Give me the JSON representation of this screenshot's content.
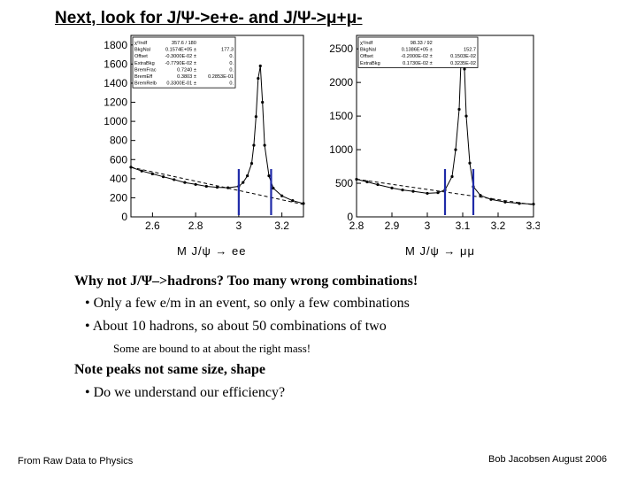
{
  "title": "Next, look for J/Ψ->e+e- and J/Ψ->μ+μ-",
  "plot_left": {
    "ytick_labels": [
      "1800",
      "1600",
      "1400",
      "1200",
      "1000",
      "800",
      "600",
      "400",
      "200",
      "0"
    ],
    "xtick_labels": [
      "2.6",
      "2.8",
      "3",
      "3.2"
    ],
    "stats": [
      [
        "χ²/ndf",
        "357.6  /  180",
        ""
      ],
      [
        "BkgNal",
        "0.1574E+05 ±",
        "177.3"
      ],
      [
        "Offset",
        "-0.3000E-02 ±",
        "0."
      ],
      [
        "ExtraBkg",
        "-0.7790E-02 ±",
        "0."
      ],
      [
        "BremFrac",
        "0.7240 ±",
        "0."
      ],
      [
        "BremEff",
        "0.3803 ±",
        "0.2853E-01"
      ],
      [
        "BremRelb",
        "0.3300E-01 ±",
        "0."
      ]
    ],
    "axis_label": "M J/ψ  →  ee"
  },
  "plot_right": {
    "ytick_labels": [
      "2500",
      "2000",
      "1500",
      "1000",
      "500",
      "0"
    ],
    "xtick_labels": [
      "2.8",
      "2.9",
      "3",
      "3.1",
      "3.2",
      "3.3"
    ],
    "stats": [
      [
        "χ²/ndf",
        "98.33  /  92",
        ""
      ],
      [
        "BkgNal",
        "0.1386E+05 ±",
        "152.7"
      ],
      [
        "Offset",
        "-0.2000E-02 ±",
        "0.1503E-02"
      ],
      [
        "ExtraBkg",
        "0.1730E-02 ±",
        "0.3235E-02"
      ]
    ],
    "axis_label": "M J/ψ  →  μμ"
  },
  "chart_data": [
    {
      "type": "scatter",
      "title": "",
      "xlabel": "M J/ψ → ee",
      "ylabel": "",
      "xlim": [
        2.5,
        3.3
      ],
      "ylim": [
        0,
        1900
      ],
      "series": [
        {
          "x": [
            2.5,
            2.55,
            2.6,
            2.65,
            2.7,
            2.75,
            2.8,
            2.85,
            2.9,
            2.95,
            3.0,
            3.02,
            3.04,
            3.06,
            3.07,
            3.08,
            3.09,
            3.1,
            3.11,
            3.12,
            3.14,
            3.16,
            3.2,
            3.25,
            3.3
          ],
          "y": [
            520,
            480,
            450,
            420,
            390,
            360,
            340,
            320,
            310,
            305,
            320,
            360,
            430,
            560,
            750,
            1050,
            1450,
            1580,
            1200,
            750,
            430,
            300,
            220,
            170,
            140
          ]
        }
      ],
      "markers": [
        3.0,
        3.15
      ],
      "dashed_background": {
        "x": [
          2.5,
          3.3
        ],
        "y": [
          520,
          130
        ]
      }
    },
    {
      "type": "scatter",
      "title": "",
      "xlabel": "M J/ψ → μμ",
      "ylabel": "",
      "xlim": [
        2.8,
        3.3
      ],
      "ylim": [
        0,
        2700
      ],
      "series": [
        {
          "x": [
            2.8,
            2.83,
            2.86,
            2.9,
            2.93,
            2.96,
            3.0,
            3.03,
            3.05,
            3.07,
            3.08,
            3.09,
            3.095,
            3.1,
            3.105,
            3.11,
            3.12,
            3.13,
            3.15,
            3.18,
            3.22,
            3.26,
            3.3
          ],
          "y": [
            560,
            520,
            480,
            430,
            400,
            380,
            350,
            360,
            400,
            600,
            1000,
            1600,
            2300,
            2500,
            2200,
            1500,
            800,
            450,
            320,
            260,
            220,
            200,
            190
          ]
        }
      ],
      "markers": [
        3.05,
        3.13
      ],
      "dashed_background": {
        "x": [
          2.8,
          3.3
        ],
        "y": [
          560,
          180
        ]
      }
    }
  ],
  "body": {
    "q1": "Why not J/Ψ–>hadrons? Too many wrong combinations!",
    "b1": "• Only a few e/m in an event, so only a few combinations",
    "b2": "• About 10 hadrons, so about 50 combinations of two",
    "s1": "Some are bound to at about the right mass!",
    "q2": "Note peaks not same size, shape",
    "b3": "• Do we understand our efficiency?"
  },
  "footer": {
    "left": "From Raw Data to Physics",
    "right": "Bob Jacobsen August 2006"
  }
}
